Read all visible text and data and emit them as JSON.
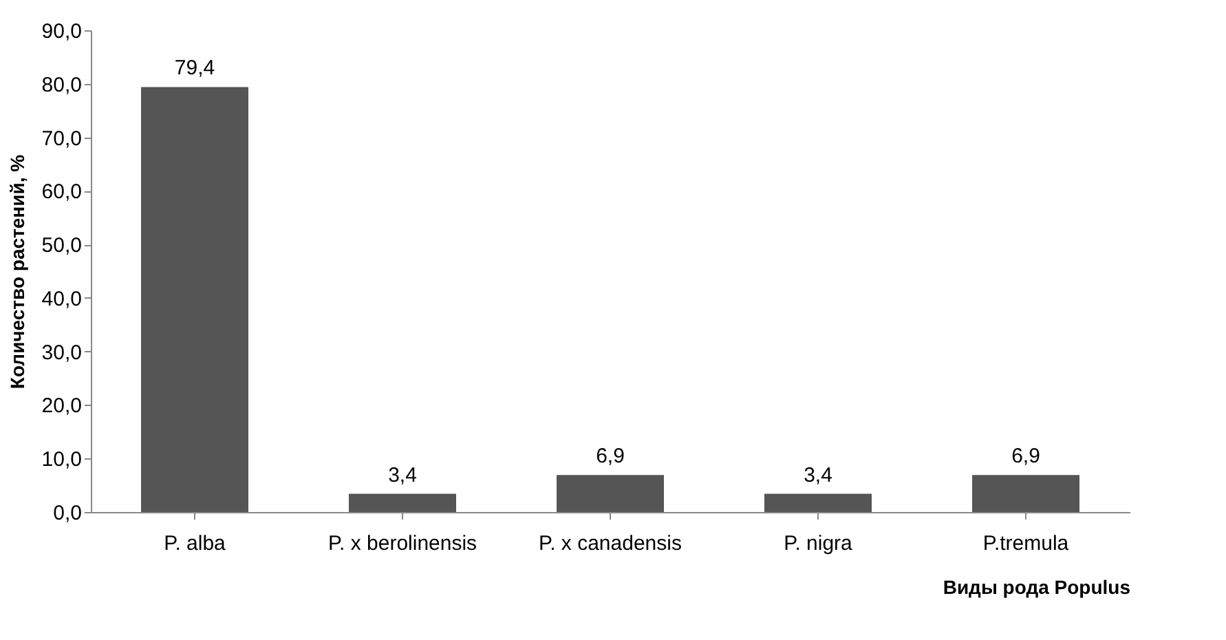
{
  "chart_data": {
    "type": "bar",
    "xlabel": "Виды рода Populus",
    "ylabel": "Количество растений, %",
    "categories": [
      "P. alba",
      "P. x berolinensis",
      "P. x canadensis",
      "P. nigra",
      "P.tremula"
    ],
    "values": [
      79.4,
      3.4,
      6.9,
      3.4,
      6.9
    ],
    "value_labels": [
      "79,4",
      "3,4",
      "6,9",
      "3,4",
      "6,9"
    ],
    "color": "#555555",
    "ylim": [
      0,
      90
    ],
    "yticks": [
      {
        "value": 0,
        "label": "0,0"
      },
      {
        "value": 10,
        "label": "10,0"
      },
      {
        "value": 20,
        "label": "20,0"
      },
      {
        "value": 30,
        "label": "30,0"
      },
      {
        "value": 40,
        "label": "40,0"
      },
      {
        "value": 50,
        "label": "50,0"
      },
      {
        "value": 60,
        "label": "60,0"
      },
      {
        "value": 70,
        "label": "70,0"
      },
      {
        "value": 80,
        "label": "80,0"
      },
      {
        "value": 90,
        "label": "90,0"
      }
    ],
    "grid": false
  }
}
